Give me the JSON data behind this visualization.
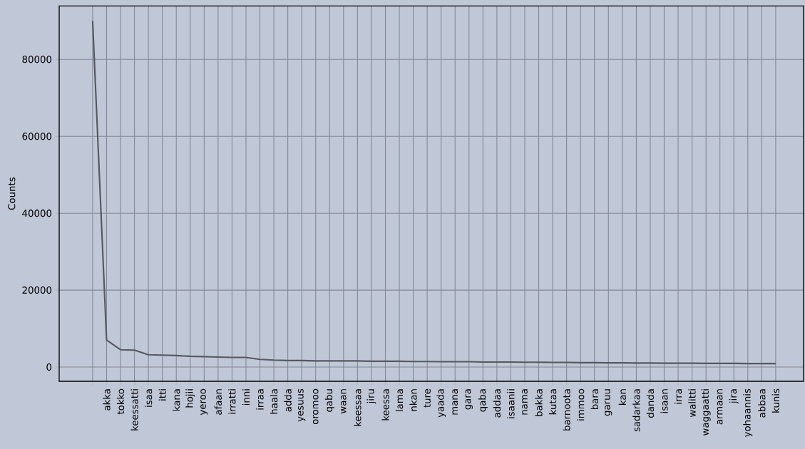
{
  "chart_data": {
    "type": "line",
    "ylabel": "Counts",
    "categories": [
      null,
      "akka",
      "tokko",
      "keessatti",
      "isaa",
      "itti",
      "kana",
      "hojii",
      "yeroo",
      "afaan",
      "irratti",
      "inni",
      "irraa",
      "haala",
      "adda",
      "yesuus",
      "oromoo",
      "qabu",
      "waan",
      "keessaa",
      "jiru",
      "keessa",
      "lama",
      "nkan",
      "ture",
      "yaada",
      "mana",
      "gara",
      "qaba",
      "addaa",
      "isaanii",
      "nama",
      "bakka",
      "kutaa",
      "barnoota",
      "immoo",
      "bara",
      "garuu",
      "kan",
      "sadarkaa",
      "danda",
      "isaan",
      "irra",
      "walitti",
      "waggaatti",
      "armaan",
      "jira",
      "yohaannis",
      "abbaa",
      "kunis"
    ],
    "series": [
      {
        "color": "#55595f",
        "values": [
          90000,
          7000,
          4500,
          4400,
          3200,
          3100,
          3000,
          2800,
          2700,
          2600,
          2500,
          2500,
          2000,
          1800,
          1700,
          1700,
          1600,
          1600,
          1600,
          1600,
          1500,
          1500,
          1500,
          1450,
          1450,
          1400,
          1400,
          1400,
          1300,
          1300,
          1300,
          1250,
          1250,
          1200,
          1200,
          1150,
          1150,
          1100,
          1100,
          1050,
          1050,
          1000,
          1000,
          1000,
          950,
          950,
          950,
          900,
          900,
          900
        ]
      }
    ],
    "ylim": [
      -3700,
      93900
    ],
    "yticks": [
      0,
      20000,
      40000,
      60000,
      80000
    ],
    "grid": true
  }
}
